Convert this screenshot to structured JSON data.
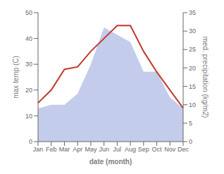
{
  "chart_data": {
    "type": "line",
    "categories": [
      "Jan",
      "Feb",
      "Mar",
      "Apr",
      "May",
      "Jun",
      "Jul",
      "Aug",
      "Sep",
      "Oct",
      "Nov",
      "Dec"
    ],
    "series": [
      {
        "type": "area",
        "axis": "y2",
        "color": "#b8c4e8",
        "values": [
          9,
          10,
          10,
          13,
          21,
          31,
          29,
          27,
          19,
          19,
          12,
          9
        ]
      },
      {
        "type": "line",
        "color": "#c0392b",
        "values": [
          15,
          20,
          28,
          29,
          35,
          40,
          45,
          45,
          35,
          27,
          20,
          13
        ]
      }
    ],
    "xlabel": "date (month)",
    "ylabel": "max temp (C)",
    "y2label": "med. precipitation (kg/m2)",
    "ylim": [
      0,
      50
    ],
    "yticks": [
      0,
      10,
      20,
      30,
      40,
      50
    ],
    "y2lim": [
      0,
      35
    ],
    "y2ticks": [
      0,
      5,
      10,
      15,
      20,
      25,
      30,
      35
    ],
    "grid": false
  }
}
